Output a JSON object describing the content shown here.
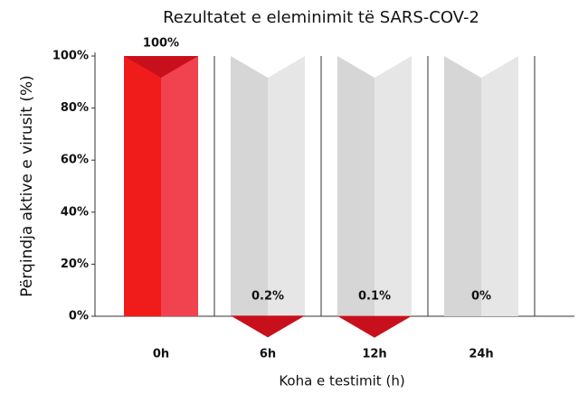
{
  "chart_data": {
    "type": "bar",
    "title": "Rezultatet e eleminimit të SARS-COV-2",
    "x_label": "Koha e testimit (h)",
    "y_label": "Përqindja aktive e virusit (%)",
    "categories": [
      "0h",
      "6h",
      "12h",
      "24h"
    ],
    "values": [
      100,
      0.2,
      0.1,
      0
    ],
    "value_labels": [
      "100%",
      "0.2%",
      "0.1%",
      "0%"
    ],
    "color": "#f01c1c",
    "ylim": [
      0,
      100
    ],
    "yticks": [
      {
        "value": 0,
        "label": "0%"
      },
      {
        "value": 20,
        "label": "20%"
      },
      {
        "value": 40,
        "label": "40%"
      },
      {
        "value": 60,
        "label": "60%"
      },
      {
        "value": 80,
        "label": "80%"
      },
      {
        "value": 100,
        "label": "100%"
      }
    ]
  }
}
